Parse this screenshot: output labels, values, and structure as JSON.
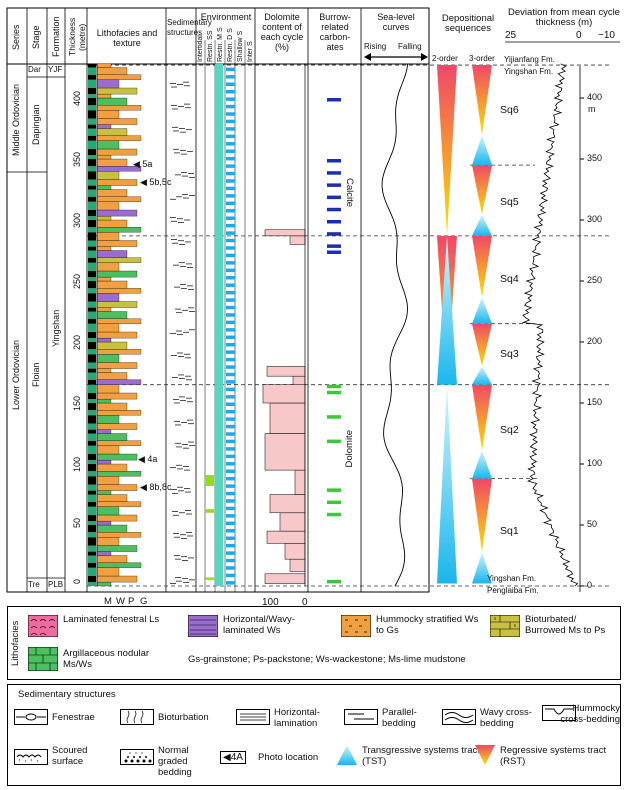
{
  "header": {
    "series": "Series",
    "stage": "Stage",
    "formation": "Formation",
    "thickness": "Thickness (metre)",
    "lithofacies": "Lithofacies and texture",
    "sedimentary": "Sedimentary structures",
    "environment": "Environment",
    "env_cols": [
      "Intertidal",
      "Restri. SS",
      "Restri. M S",
      "Restri. D S",
      "Shallow S",
      "Inter S"
    ],
    "dolomite": "Dolomite content of each cycle (%)",
    "burrow": "Burrow-related carbon-ates",
    "sealevel": "Sea-level curves",
    "rising": "Rising",
    "falling": "Falling",
    "depositional": "Depositional sequences",
    "order2": "2-order",
    "order3": "3-order",
    "deviation": "Deviation from mean cycle thickness (m)"
  },
  "columns": {
    "series_labels": [
      "Middle Ordovician",
      "Lower Ordovician"
    ],
    "stage_labels": [
      "Dar",
      "Dapingian",
      "Floian",
      "Tre"
    ],
    "formation_labels": [
      "YJF",
      "Yingshan",
      "PLB"
    ],
    "thickness_ticks": [
      "400",
      "350",
      "300",
      "250",
      "200",
      "150",
      "100",
      "50",
      "0"
    ],
    "texture_axis": [
      "M",
      "W",
      "P",
      "G"
    ],
    "dolomite_axis": [
      "100",
      "0"
    ],
    "deviation_axis": [
      "25",
      "0",
      "−10"
    ],
    "deviation_ticks": [
      "400",
      "350",
      "300",
      "250",
      "200",
      "150",
      "100",
      "50",
      "0"
    ],
    "deviation_unit": "m",
    "photo_labels": [
      "5a",
      "5b,5c",
      "4a",
      "8b,8c"
    ],
    "calcite": "Calcite",
    "dolomite_label": "Dolomite",
    "sequences": [
      "Sq6",
      "Sq5",
      "Sq4",
      "Sq3",
      "Sq2",
      "Sq1"
    ],
    "boundaries": [
      "Yijianfang Fm.",
      "Yingshan Fm.",
      "Yingshan Fm.",
      "Penglaiba Fm."
    ]
  },
  "legend": {
    "lithofacies_title": "Lithofacies",
    "items": [
      "Laminated fenestral Ls",
      "Horizontal/Wavy-laminated Ws",
      "Hummocky stratified Ws to Gs",
      "Bioturbated/ Burrowed Ms to Ps",
      "Argillaceous nodular Ms/Ws"
    ],
    "abbrev": "Gs-grainstone; Ps-packstone; Ws-wackestone; Ms-lime mudstone",
    "sed_title": "Sedimentary structures",
    "sed_items": [
      "Fenestrae",
      "Bioturbation",
      "Horizontal-lamination",
      "Parallel-bedding",
      "Wavy cross-bedding",
      "Hummocky cross-bedding",
      "Scoured surface",
      "Normal graded bedding",
      "Photo location",
      "Transgressive systems tract (TST)",
      "Regressive systems tract (RST)"
    ],
    "photo_marker": "◀4A",
    "colors": {
      "pink": "#f06aa0",
      "purple": "#9a6ccf",
      "orange": "#f0a040",
      "olive": "#c8c040",
      "green": "#4cbf60",
      "cyan": "#4fd1f0",
      "blue": "#1b2db0",
      "dolo_green": "#38c838",
      "salmon": "#f8c8c8"
    }
  }
}
